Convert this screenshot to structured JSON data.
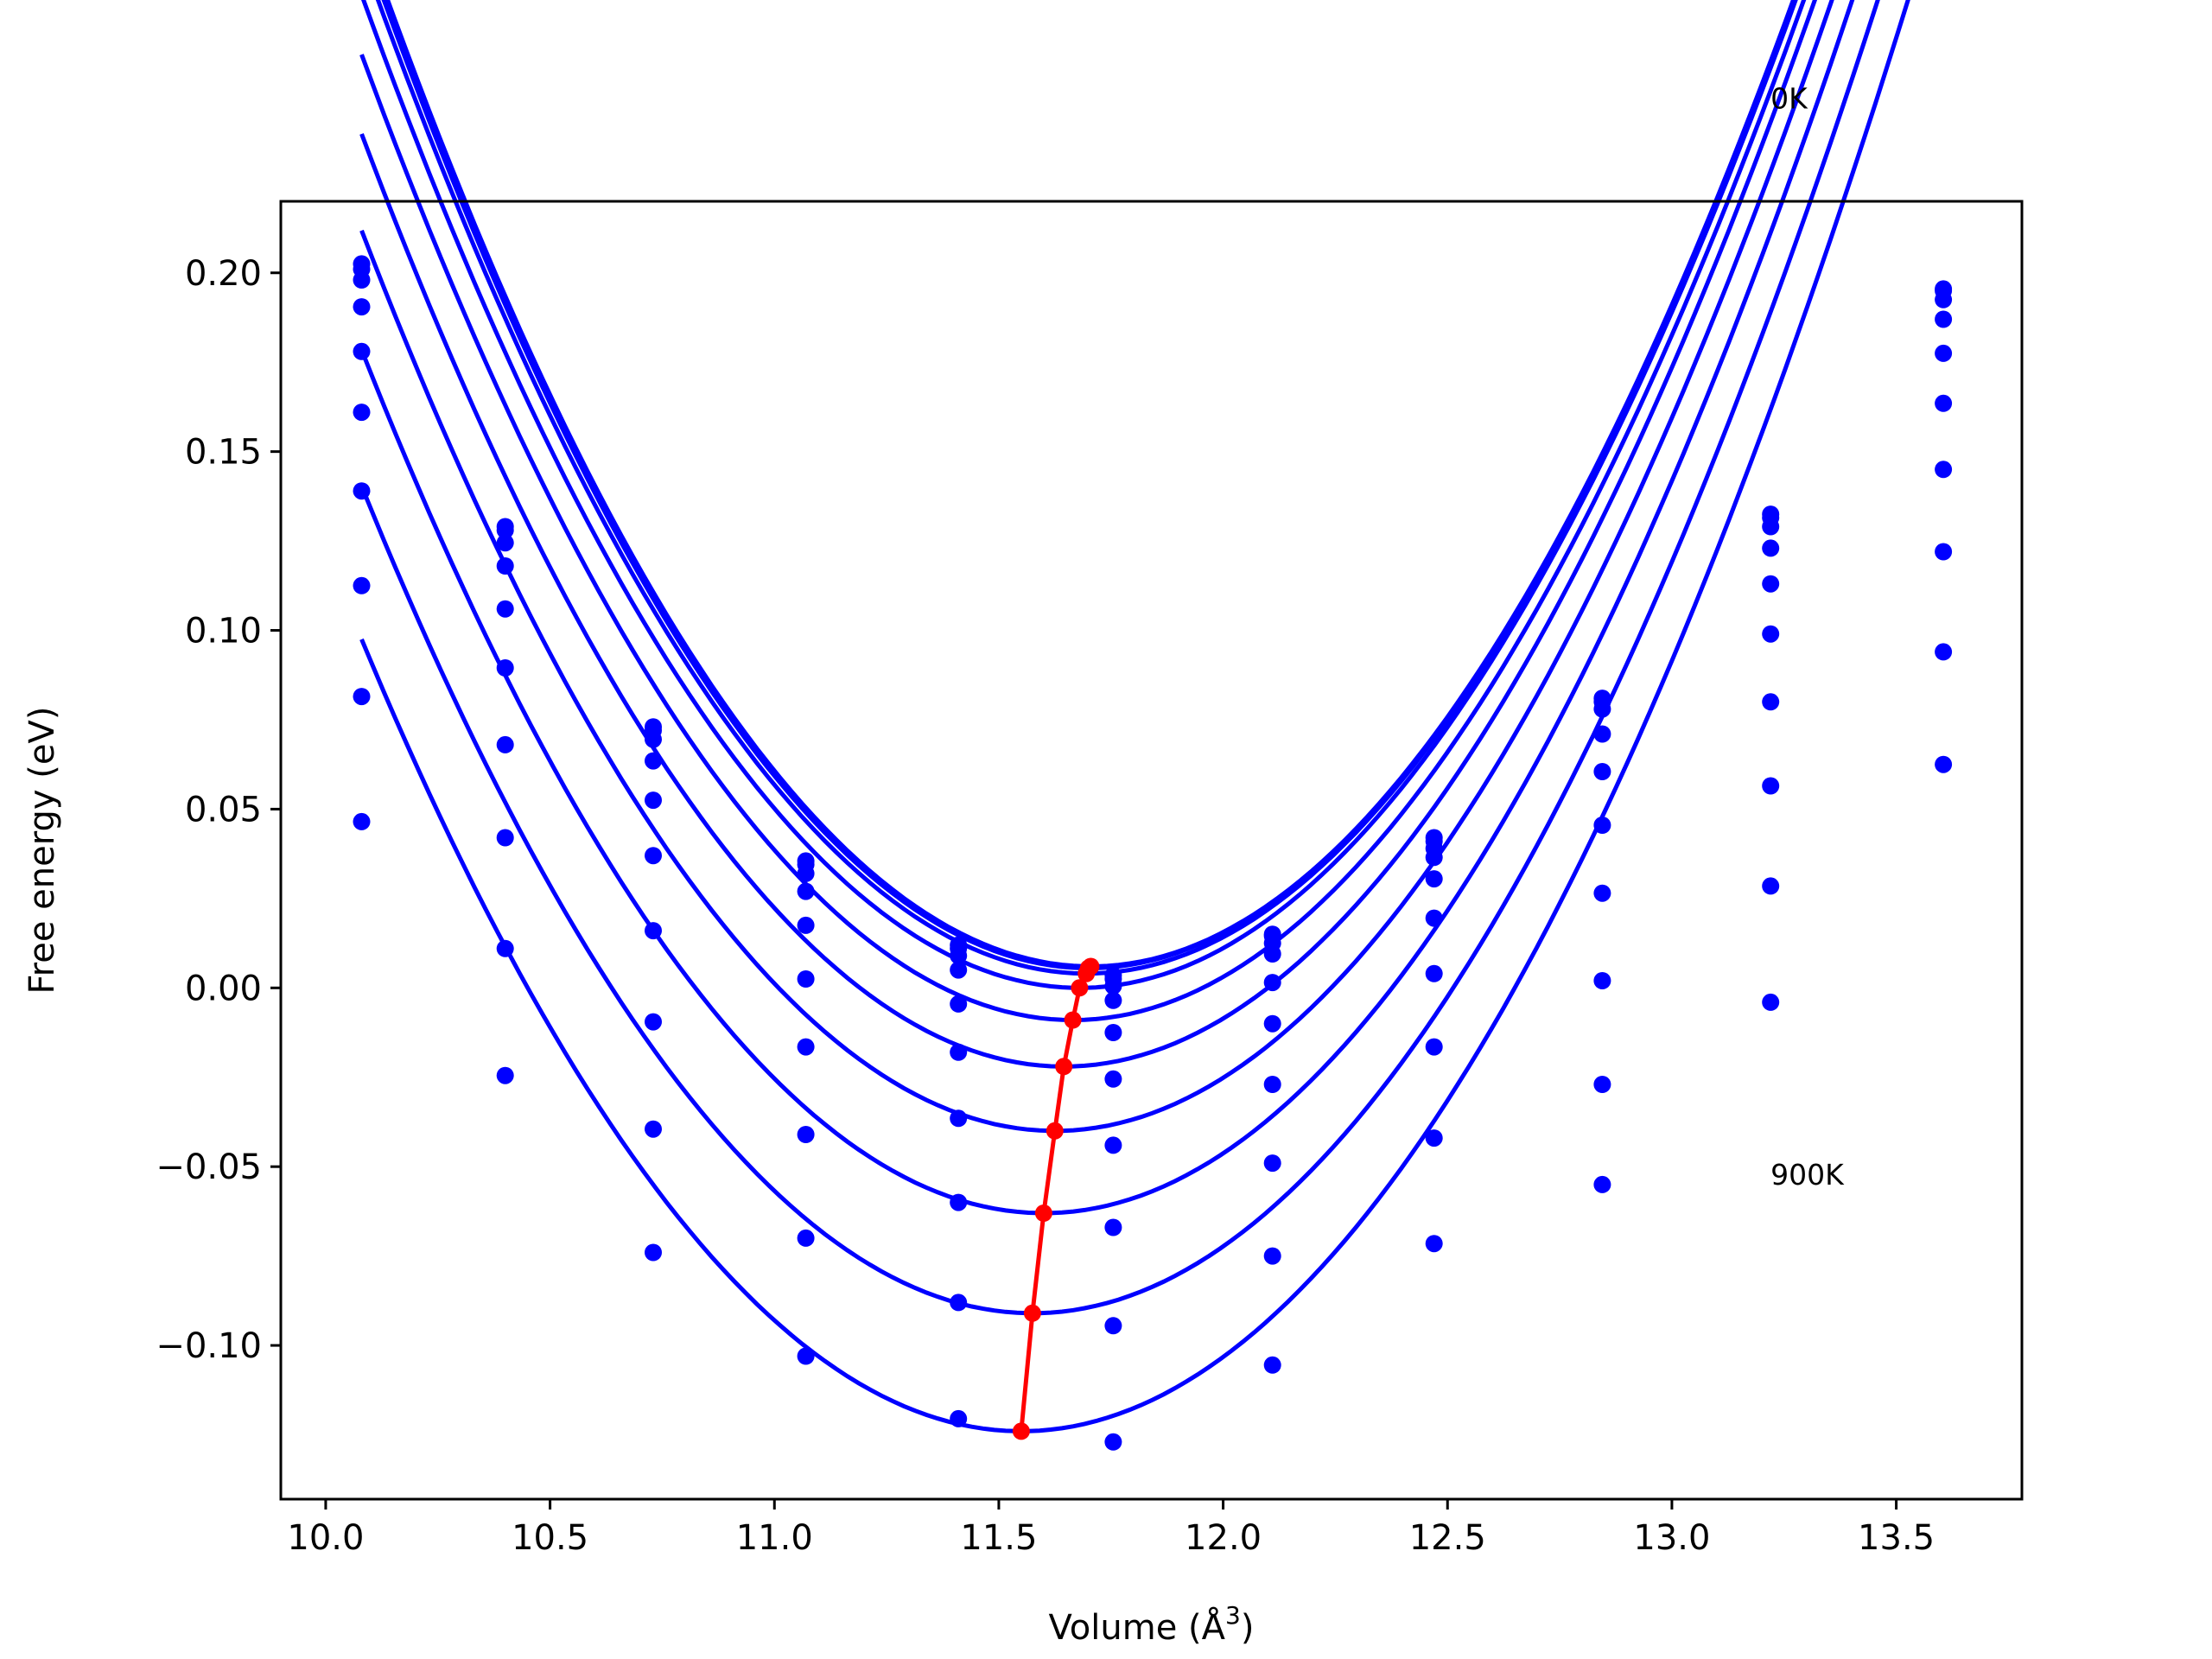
{
  "chart_data": {
    "type": "scatter",
    "title": "",
    "xlabel": "Volume (Å",
    "xlabel_exp": "3",
    "xlabel_close": ")",
    "ylabel": "Free energy (eV)",
    "xlim": [
      9.9,
      13.78
    ],
    "ylim": [
      -0.143,
      0.22
    ],
    "xticks": [
      10.0,
      10.5,
      11.0,
      11.5,
      12.0,
      12.5,
      13.0,
      13.5
    ],
    "xtick_labels": [
      "10.0",
      "10.5",
      "11.0",
      "11.5",
      "12.0",
      "12.5",
      "13.0",
      "13.5"
    ],
    "yticks": [
      -0.1,
      -0.05,
      0.0,
      0.05,
      0.1,
      0.15,
      0.2
    ],
    "ytick_labels": [
      "−0.10",
      "−0.05",
      "0.00",
      "0.05",
      "0.10",
      "0.15",
      "0.20"
    ],
    "grid": false,
    "colors": {
      "curves": "#0000ff",
      "minima": "#ff0000",
      "axes": "#000000"
    },
    "annotations": [
      {
        "text": "0K",
        "x": 13.22,
        "y": 0.246
      },
      {
        "text": "900K",
        "x": 13.22,
        "y": -0.055
      }
    ],
    "volumes": [
      10.08,
      10.4,
      10.73,
      11.07,
      11.41,
      11.755,
      12.11,
      12.47,
      12.845,
      13.22,
      13.605
    ],
    "series": [
      {
        "fit": {
          "a": 0.1101,
          "v0": 11.705,
          "e0": 0.006
        },
        "points": [
          0.2025,
          0.129,
          0.073,
          0.0355,
          0.012,
          0.0035,
          0.015,
          0.042,
          0.081,
          0.1325,
          0.1955
        ]
      },
      {
        "fit": {
          "a": 0.1098,
          "v0": 11.7,
          "e0": 0.0055
        },
        "points": [
          0.201,
          0.128,
          0.072,
          0.0345,
          0.011,
          0.0025,
          0.0145,
          0.041,
          0.08,
          0.1315,
          0.195
        ]
      },
      {
        "fit": {
          "a": 0.1093,
          "v0": 11.695,
          "e0": 0.004
        },
        "points": [
          0.198,
          0.1245,
          0.0695,
          0.032,
          0.009,
          0.0005,
          0.0125,
          0.039,
          0.078,
          0.129,
          0.1925
        ]
      },
      {
        "fit": {
          "a": 0.1085,
          "v0": 11.68,
          "e0": 0.0
        },
        "points": [
          0.1905,
          0.118,
          0.0635,
          0.027,
          0.005,
          -0.0035,
          0.0095,
          0.0365,
          0.071,
          0.123,
          0.187
        ]
      },
      {
        "fit": {
          "a": 0.1075,
          "v0": 11.665,
          "e0": -0.009
        },
        "points": [
          0.178,
          0.106,
          0.0525,
          0.0175,
          -0.0045,
          -0.0125,
          0.0015,
          0.0305,
          0.0605,
          0.113,
          0.1775
        ]
      },
      {
        "fit": {
          "a": 0.1065,
          "v0": 11.645,
          "e0": -0.022
        },
        "points": [
          0.161,
          0.0895,
          0.037,
          0.0025,
          -0.018,
          -0.0255,
          -0.01,
          0.0195,
          0.0455,
          0.099,
          0.1635
        ]
      },
      {
        "fit": {
          "a": 0.1055,
          "v0": 11.625,
          "e0": -0.04
        },
        "points": [
          0.139,
          0.068,
          0.016,
          -0.0165,
          -0.0365,
          -0.044,
          -0.027,
          0.004,
          0.0265,
          0.08,
          0.145
        ]
      },
      {
        "fit": {
          "a": 0.1045,
          "v0": 11.6,
          "e0": -0.063
        },
        "points": [
          0.1125,
          0.042,
          -0.0095,
          -0.041,
          -0.06,
          -0.067,
          -0.049,
          -0.0165,
          0.002,
          0.0565,
          0.122
        ]
      },
      {
        "fit": {
          "a": 0.1035,
          "v0": 11.575,
          "e0": -0.091
        },
        "points": [
          0.0815,
          0.011,
          -0.0395,
          -0.07,
          -0.088,
          -0.0945,
          -0.075,
          -0.042,
          -0.027,
          0.0285,
          0.094
        ]
      },
      {
        "fit": {
          "a": 0.1025,
          "v0": 11.55,
          "e0": -0.124
        },
        "points": [
          0.0465,
          -0.0245,
          -0.074,
          -0.103,
          -0.1205,
          -0.127,
          -0.1055,
          -0.0715,
          -0.055,
          -0.004,
          0.0625
        ]
      }
    ],
    "minima": {
      "x": [
        11.705,
        11.7,
        11.695,
        11.68,
        11.665,
        11.645,
        11.625,
        11.6,
        11.575,
        11.55
      ],
      "y": [
        0.006,
        0.0055,
        0.004,
        0.0,
        -0.009,
        -0.022,
        -0.04,
        -0.063,
        -0.091,
        -0.124
      ]
    }
  }
}
